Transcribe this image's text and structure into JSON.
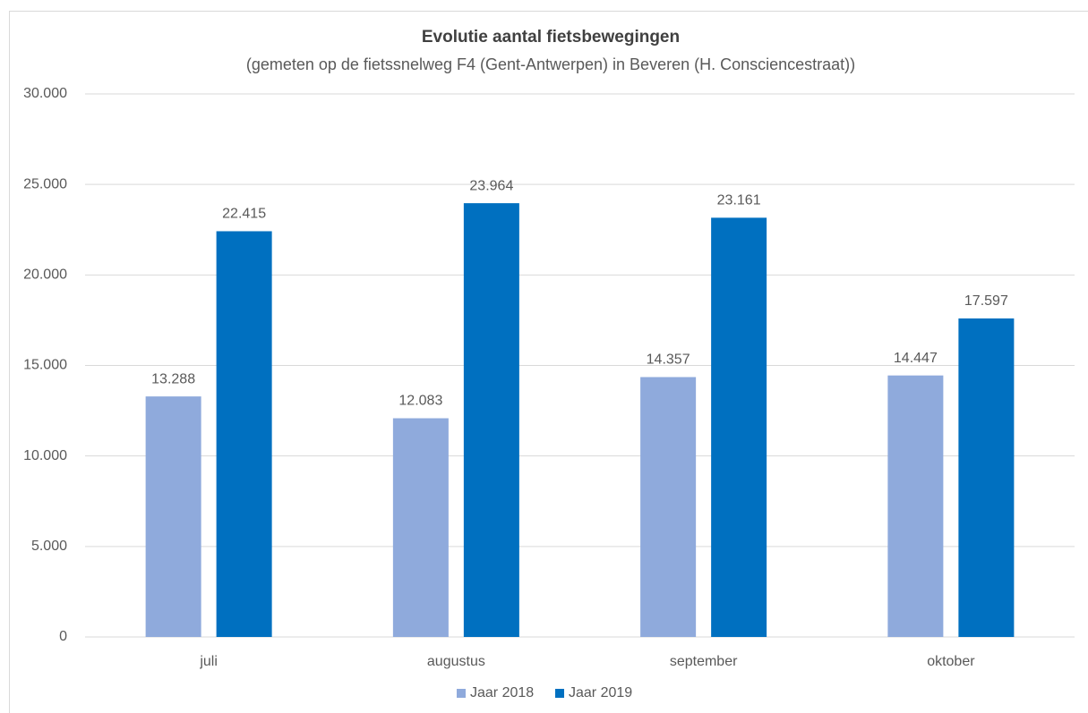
{
  "chart_data": {
    "type": "bar",
    "title": "Evolutie aantal fietsbewegingen",
    "subtitle": "(gemeten op de fietssnelweg F4 (Gent-Antwerpen) in Beveren (H. Consciencestraat))",
    "categories": [
      "juli",
      "augustus",
      "september",
      "oktober"
    ],
    "series": [
      {
        "name": "Jaar 2018",
        "color": "#8faadc",
        "values": [
          13288,
          12083,
          14357,
          14447
        ],
        "value_labels": [
          "13.288",
          "12.083",
          "14.357",
          "14.447"
        ]
      },
      {
        "name": "Jaar 2019",
        "color": "#0070c0",
        "values": [
          22415,
          23964,
          23161,
          17597
        ],
        "value_labels": [
          "22.415",
          "23.964",
          "23.161",
          "17.597"
        ]
      }
    ],
    "ylim": [
      0,
      30000
    ],
    "yticks": [
      0,
      {
        "value": 5000,
        "label": "5.000"
      },
      {
        "value": 10000,
        "label": "10.000"
      },
      {
        "value": 15000,
        "label": "15.000"
      },
      {
        "value": 20000,
        "label": "20.000"
      },
      {
        "value": 25000,
        "label": "25.000"
      },
      {
        "value": 30000,
        "label": "30.000"
      }
    ],
    "grid": true,
    "legend": "bottom"
  }
}
